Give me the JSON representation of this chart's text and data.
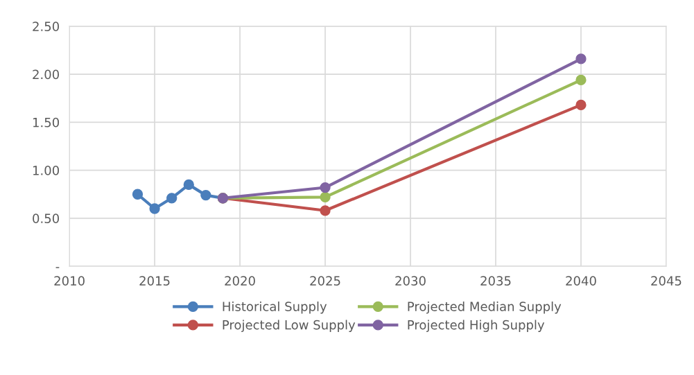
{
  "chart_data": {
    "type": "line",
    "marker": "circle",
    "line_style": "solid",
    "grid": true,
    "legend": "bottom",
    "xlim": [
      2010,
      2045
    ],
    "xticks": [
      2010,
      2015,
      2020,
      2025,
      2030,
      2035,
      2040,
      2045
    ],
    "ylim": [
      0,
      2.5
    ],
    "yticks": [
      {
        "value": 0,
        "label": "-"
      },
      {
        "value": 0.5,
        "label": "0.50"
      },
      {
        "value": 1,
        "label": "1.00"
      },
      {
        "value": 1.5,
        "label": "1.50"
      },
      {
        "value": 2,
        "label": "2.00"
      },
      {
        "value": 2.5,
        "label": "2.50"
      }
    ],
    "series": [
      {
        "name": "Historical Supply",
        "color": "#4a7ebb",
        "x": [
          2014,
          2015,
          2016,
          2017,
          2018,
          2019
        ],
        "values": [
          0.75,
          0.6,
          0.71,
          0.85,
          0.74,
          0.71
        ]
      },
      {
        "name": "Projected Low Supply",
        "color": "#c0504d",
        "x": [
          2019,
          2025,
          2040
        ],
        "values": [
          0.71,
          0.58,
          1.68
        ]
      },
      {
        "name": "Projected Median Supply",
        "color": "#9bbb59",
        "x": [
          2019,
          2025,
          2040
        ],
        "values": [
          0.71,
          0.72,
          1.94
        ]
      },
      {
        "name": "Projected High Supply",
        "color": "#8064a2",
        "x": [
          2019,
          2025,
          2040
        ],
        "values": [
          0.71,
          0.82,
          2.16
        ]
      }
    ]
  }
}
